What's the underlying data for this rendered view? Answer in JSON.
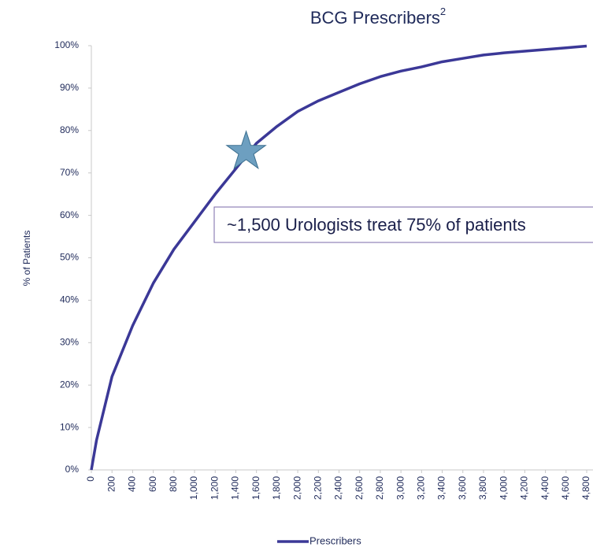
{
  "chart_data": {
    "type": "line",
    "title": "BCG Prescribers",
    "title_superscript": "2",
    "y_label": "% of Patients",
    "annotation": "~1,500 Urologists treat 75% of patients",
    "x": [
      0,
      50,
      200,
      400,
      600,
      800,
      1000,
      1200,
      1400,
      1600,
      1800,
      2000,
      2200,
      2400,
      2600,
      2800,
      3000,
      3200,
      3400,
      3600,
      3800,
      4000,
      4200,
      4400,
      4600,
      4800
    ],
    "series": [
      {
        "name": "Prescribers",
        "color": "#3b3897",
        "values": [
          0,
          7,
          22,
          34,
          44,
          52,
          58.5,
          65,
          71,
          77,
          81,
          84.5,
          87,
          89,
          91,
          92.7,
          94,
          95,
          96.2,
          97,
          97.8,
          98.3,
          98.7,
          99.1,
          99.5,
          99.9
        ]
      }
    ],
    "highlight": {
      "x": 1500,
      "y": 75,
      "color": "#6d9fc0"
    },
    "xlim": [
      0,
      4800
    ],
    "ylim": [
      0,
      100
    ],
    "xticks": [
      0,
      200,
      400,
      600,
      800,
      {
        "value": 1000,
        "label": "1,000"
      },
      {
        "value": 1200,
        "label": "1,200"
      },
      {
        "value": 1400,
        "label": "1,400"
      },
      {
        "value": 1600,
        "label": "1,600"
      },
      {
        "value": 1800,
        "label": "1,800"
      },
      {
        "value": 2000,
        "label": "2,000"
      },
      {
        "value": 2200,
        "label": "2,200"
      },
      {
        "value": 2400,
        "label": "2,400"
      },
      {
        "value": 2600,
        "label": "2,600"
      },
      {
        "value": 2800,
        "label": "2,800"
      },
      {
        "value": 3000,
        "label": "3,000"
      },
      {
        "value": 3200,
        "label": "3,200"
      },
      {
        "value": 3400,
        "label": "3,400"
      },
      {
        "value": 3600,
        "label": "3,600"
      },
      {
        "value": 3800,
        "label": "3,800"
      },
      {
        "value": 4000,
        "label": "4,000"
      },
      {
        "value": 4200,
        "label": "4,200"
      },
      {
        "value": 4400,
        "label": "4,400"
      },
      {
        "value": 4600,
        "label": "4,600"
      },
      {
        "value": 4800,
        "label": "4,800"
      }
    ],
    "yticks": [
      {
        "value": 0,
        "label": "0%"
      },
      {
        "value": 10,
        "label": "10%"
      },
      {
        "value": 20,
        "label": "20%"
      },
      {
        "value": 30,
        "label": "30%"
      },
      {
        "value": 40,
        "label": "40%"
      },
      {
        "value": 50,
        "label": "50%"
      },
      {
        "value": 60,
        "label": "60%"
      },
      {
        "value": 70,
        "label": "70%"
      },
      {
        "value": 80,
        "label": "80%"
      },
      {
        "value": 90,
        "label": "90%"
      },
      {
        "value": 100,
        "label": "100%"
      }
    ],
    "legend": "bottom"
  }
}
